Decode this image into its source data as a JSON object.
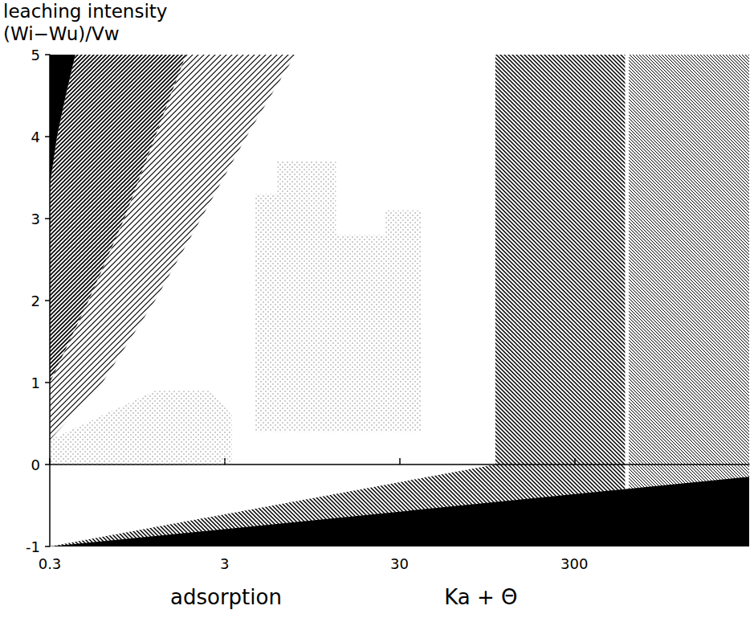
{
  "chart_data": {
    "type": "area",
    "ylabel": [
      "leaching intensity",
      "(Wi−Wu)/Vw"
    ],
    "xlabel": [
      "adsorption",
      "Ka + Θ"
    ],
    "log": "x",
    "grid": false,
    "xlim": [
      0.3,
      3000
    ],
    "xticks": [
      0.3,
      3,
      30,
      300
    ],
    "ylim": [
      -1,
      5
    ],
    "yticks": [
      -1,
      0,
      1,
      2,
      3,
      4,
      5
    ],
    "series": [
      {
        "line_style": "stipple",
        "color": "#8c8c8c",
        "values": [
          [
            0.3,
            0
          ],
          [
            0.3,
            0.3
          ],
          [
            0.6,
            0.6
          ],
          [
            1.2,
            0.9
          ],
          [
            2.5,
            0.9
          ],
          [
            3.3,
            0.6
          ],
          [
            3.3,
            0
          ]
        ]
      },
      {
        "line_style": "stipple",
        "color": "#8c8c8c",
        "values": [
          [
            4.5,
            0.4
          ],
          [
            4.5,
            3.3
          ],
          [
            6,
            3.3
          ],
          [
            6,
            3.7
          ],
          [
            13,
            3.7
          ],
          [
            13,
            2.8
          ],
          [
            25,
            2.8
          ],
          [
            25,
            3.1
          ],
          [
            40,
            3.1
          ],
          [
            40,
            0.4
          ]
        ]
      },
      {
        "line_style": "hatch",
        "color": "#000000",
        "values": [
          [
            0.3,
            0.3
          ],
          [
            0.6,
            1.0
          ],
          [
            1.2,
            2.0
          ],
          [
            2.2,
            3.0
          ],
          [
            4,
            4.0
          ],
          [
            7.6,
            5
          ],
          [
            1.8,
            5
          ],
          [
            1.2,
            4.0
          ],
          [
            0.8,
            3.0
          ],
          [
            0.5,
            2.0
          ],
          [
            0.3,
            1.0
          ]
        ]
      },
      {
        "line_style": "hatch_dense",
        "color": "#000000",
        "values": [
          [
            0.3,
            1.0
          ],
          [
            0.5,
            2.0
          ],
          [
            0.8,
            3.0
          ],
          [
            1.2,
            4.0
          ],
          [
            1.8,
            5
          ],
          [
            0.42,
            5
          ],
          [
            0.37,
            4.5
          ],
          [
            0.33,
            4.0
          ],
          [
            0.3,
            3.4
          ]
        ]
      },
      {
        "line_style": "solid",
        "color": "#000000",
        "values": [
          [
            0.3,
            3.4
          ],
          [
            0.33,
            4.0
          ],
          [
            0.37,
            4.5
          ],
          [
            0.42,
            5
          ],
          [
            0.3,
            5
          ]
        ]
      },
      {
        "line_style": "hatch_back",
        "color": "#000000",
        "values": [
          [
            0.3,
            -1
          ],
          [
            106,
            0
          ],
          [
            106,
            -1
          ]
        ]
      },
      {
        "line_style": "hatch_back",
        "color": "#000000",
        "values": [
          [
            106,
            -1
          ],
          [
            106,
            5
          ],
          [
            585,
            5
          ],
          [
            585,
            -1
          ]
        ]
      },
      {
        "line_style": "hatch_back_fine",
        "color": "#000000",
        "values": [
          [
            615,
            -1
          ],
          [
            615,
            5
          ],
          [
            3000,
            5
          ],
          [
            3000,
            -1
          ]
        ]
      },
      {
        "line_style": "solid",
        "color": "#000000",
        "values": [
          [
            0.3,
            -1
          ],
          [
            3000,
            -0.15
          ],
          [
            3000,
            -1
          ]
        ]
      }
    ]
  }
}
